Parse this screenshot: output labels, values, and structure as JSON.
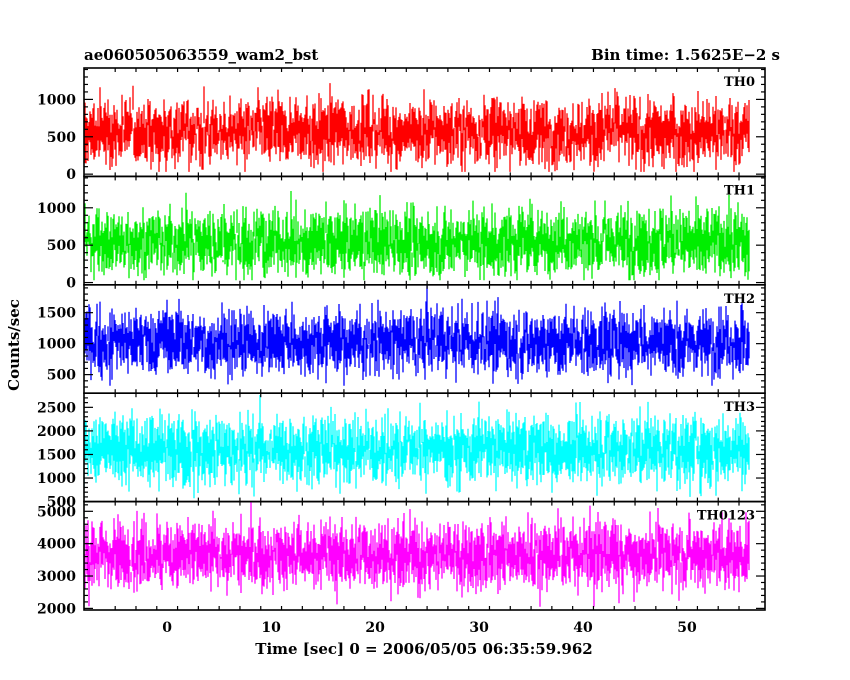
{
  "header": {
    "left_title": "ae060505063559_wam2_bst",
    "right_title": "Bin time: 1.5625E−2 s"
  },
  "chart_data": {
    "type": "line",
    "title": "ae060505063559_wam2_bst",
    "subtitle": "Bin time: 1.5625E−2 s",
    "xlabel": "Time [sec] 0 = 2006/05/05 06:35:59.962",
    "ylabel": "Counts/sec",
    "xlim": [
      -8,
      57.5
    ],
    "x_range_of_data": [
      -8,
      56
    ],
    "x_ticks": [
      0,
      10,
      20,
      30,
      40,
      50
    ],
    "grid": false,
    "legend": "none",
    "panels": [
      {
        "name": "TH0",
        "color": "#ff0000",
        "ylim": [
          -30,
          1420
        ],
        "y_ticks": [
          0,
          500,
          1000
        ],
        "y_labels": [
          "0",
          "500",
          "1000"
        ],
        "mean": 560,
        "low": 30,
        "high": 1420
      },
      {
        "name": "TH1",
        "color": "#00ee00",
        "ylim": [
          -30,
          1420
        ],
        "y_ticks": [
          0,
          500,
          1000
        ],
        "y_labels": [
          "0",
          "500",
          "1000"
        ],
        "mean": 540,
        "low": 30,
        "high": 1420
      },
      {
        "name": "TH2",
        "color": "#0000ff",
        "ylim": [
          200,
          1950
        ],
        "y_ticks": [
          500,
          1000,
          1500
        ],
        "y_labels": [
          "500",
          "1000",
          "1500"
        ],
        "mean": 1030,
        "low": 320,
        "high": 1950
      },
      {
        "name": "TH3",
        "color": "#00ffff",
        "ylim": [
          500,
          2800
        ],
        "y_ticks": [
          500,
          1000,
          1500,
          2000,
          2500
        ],
        "y_labels": [
          "500",
          "1000",
          "1500",
          "2000",
          "2500"
        ],
        "mean": 1600,
        "low": 560,
        "high": 2800
      },
      {
        "name": "TH0123",
        "color": "#ff00ff",
        "ylim": [
          1950,
          5300
        ],
        "y_ticks": [
          2000,
          3000,
          4000,
          5000
        ],
        "y_labels": [
          "2000",
          "3000",
          "4000",
          "5000"
        ],
        "mean": 3650,
        "low": 2050,
        "high": 5300
      }
    ]
  }
}
